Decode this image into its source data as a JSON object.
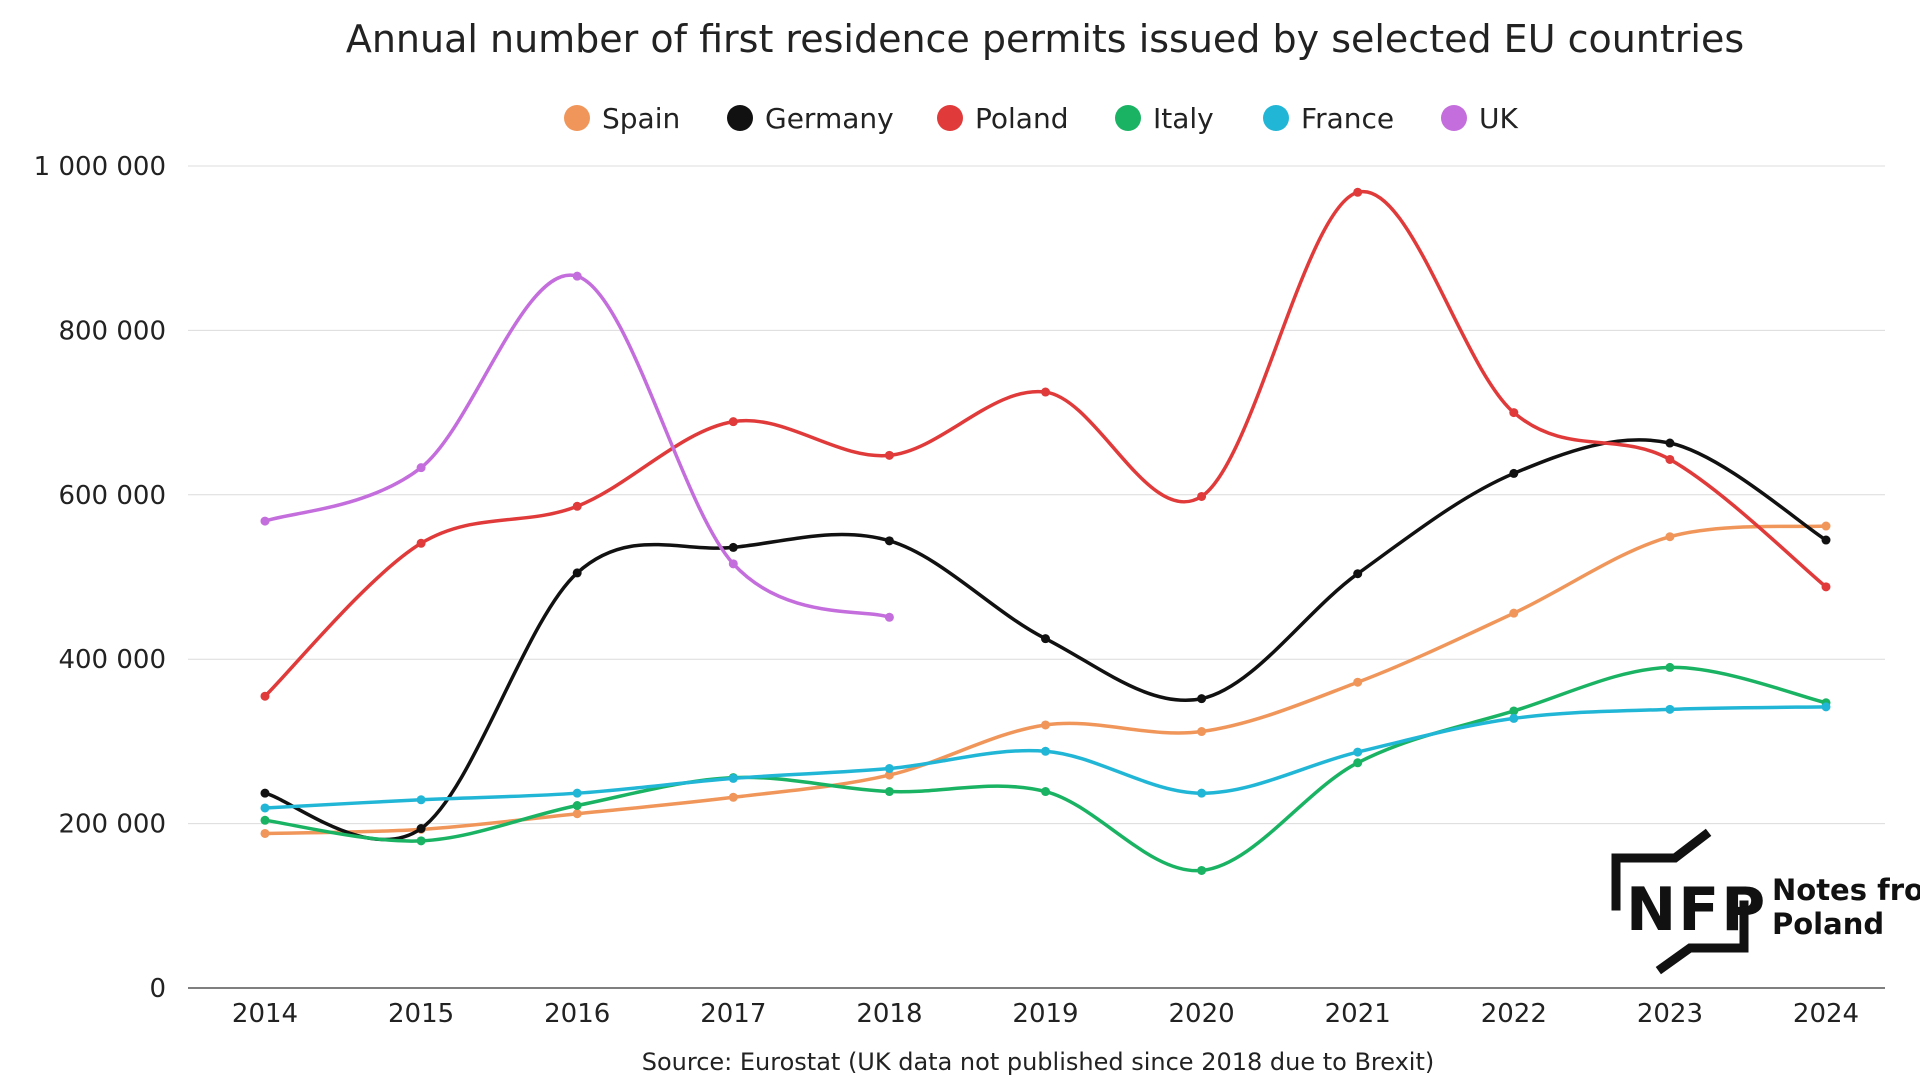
{
  "chart_data": {
    "type": "line",
    "title": "Annual number of first residence permits issued by selected EU countries",
    "source": "Source: Eurostat (UK data not published since 2018 due to Brexit)",
    "x": [
      2014,
      2015,
      2016,
      2017,
      2018,
      2019,
      2020,
      2021,
      2022,
      2023,
      2024
    ],
    "x_tick_labels": [
      "2014",
      "2015",
      "2016",
      "2017",
      "2018",
      "2019",
      "2020",
      "2021",
      "2022",
      "2023",
      "2024"
    ],
    "ylim": [
      0,
      1000000
    ],
    "y_ticks": [
      0,
      200000,
      400000,
      600000,
      800000,
      1000000
    ],
    "y_tick_labels": [
      "0",
      "200 000",
      "400 000",
      "600 000",
      "800 000",
      "1 000 000"
    ],
    "grid": "horizontal",
    "legend_position": "top-center",
    "series": [
      {
        "name": "Spain",
        "color": "#f0965a",
        "values": [
          188000,
          193000,
          212000,
          232000,
          259000,
          320000,
          312000,
          372000,
          456000,
          549000,
          562000
        ]
      },
      {
        "name": "Germany",
        "color": "#111111",
        "values": [
          237000,
          194000,
          505000,
          536000,
          544000,
          425000,
          352000,
          504000,
          626000,
          663000,
          545000
        ]
      },
      {
        "name": "Poland",
        "color": "#e03a3a",
        "values": [
          355000,
          541000,
          586000,
          689000,
          648000,
          725000,
          598000,
          968000,
          700000,
          643000,
          488000
        ]
      },
      {
        "name": "Italy",
        "color": "#1ab363",
        "values": [
          204000,
          179000,
          222000,
          256000,
          239000,
          239000,
          143000,
          274000,
          337000,
          390000,
          347000
        ]
      },
      {
        "name": "France",
        "color": "#22b6d6",
        "values": [
          219000,
          229000,
          237000,
          255000,
          267000,
          288000,
          237000,
          287000,
          328000,
          339000,
          342000
        ]
      },
      {
        "name": "UK",
        "color": "#c46ddc",
        "values": [
          568000,
          633000,
          866000,
          516000,
          451000,
          null,
          null,
          null,
          null,
          null,
          null
        ]
      }
    ]
  },
  "logo": {
    "mark": "NFP",
    "line1": "Notes from",
    "line2": "Poland"
  }
}
